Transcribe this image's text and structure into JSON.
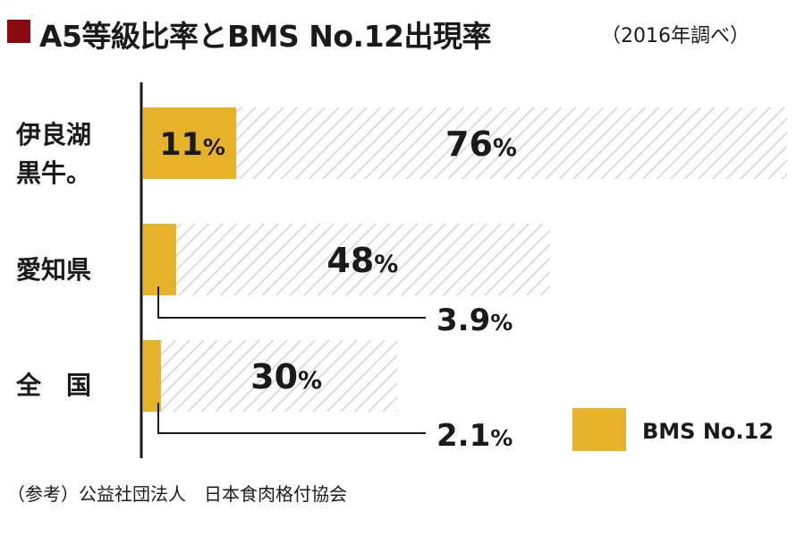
{
  "title": "A5等級比率とBMS No.12出現率",
  "subtitle": "（2016年調べ）",
  "source": "（参考）公益社団法人　日本食肉格付協会",
  "colors": {
    "title_mark": "#8b0a10",
    "bms": "#e6b22a",
    "a5_hatch": "#d4d4d4",
    "axis": "#1a1a1a"
  },
  "chart_data": {
    "type": "bar",
    "orientation": "horizontal",
    "categories": [
      [
        "伊良湖",
        "黒牛。"
      ],
      [
        "愛知県"
      ],
      [
        "全　国"
      ]
    ],
    "series": [
      {
        "name": "",
        "values": [
          76,
          48,
          30
        ],
        "labels": [
          "76",
          "48",
          "30"
        ],
        "style": "hatched"
      },
      {
        "name": "BMS No.12",
        "values": [
          11,
          3.9,
          2.1
        ],
        "labels": [
          "11",
          "3.9",
          "2.1"
        ],
        "style": "solid"
      }
    ],
    "unit": "%",
    "xlim": [
      0,
      76
    ],
    "legend": {
      "position": "bottom-right",
      "label": "BMS No.12"
    }
  }
}
